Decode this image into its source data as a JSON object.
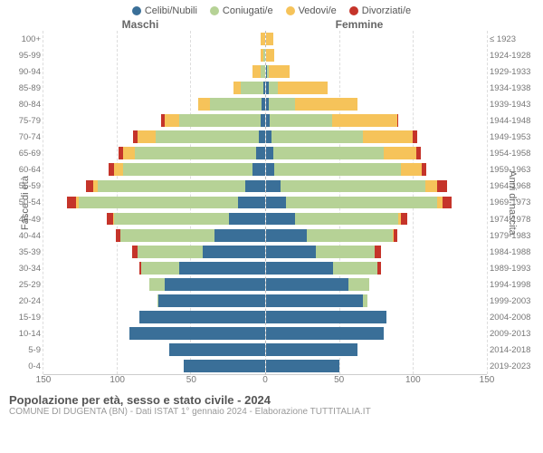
{
  "legend": [
    {
      "label": "Celibi/Nubili",
      "color": "#3a6f98"
    },
    {
      "label": "Coniugati/e",
      "color": "#b6d296"
    },
    {
      "label": "Vedovi/e",
      "color": "#f6c35a"
    },
    {
      "label": "Divorziati/e",
      "color": "#c5342a"
    }
  ],
  "header": {
    "male": "Maschi",
    "female": "Femmine"
  },
  "y_left_label": "Fasce di età",
  "y_right_label": "Anni di nascita",
  "axis_x_max": 150,
  "x_ticks_left": [
    150,
    100,
    50,
    0
  ],
  "x_ticks_right": [
    0,
    50,
    100,
    150
  ],
  "age_bins": [
    "100+",
    "95-99",
    "90-94",
    "85-89",
    "80-84",
    "75-79",
    "70-74",
    "65-69",
    "60-64",
    "55-59",
    "50-54",
    "45-49",
    "40-44",
    "35-39",
    "30-34",
    "25-29",
    "20-24",
    "15-19",
    "10-14",
    "5-9",
    "0-4"
  ],
  "birth_bins": [
    "≤ 1923",
    "1924-1928",
    "1929-1933",
    "1934-1938",
    "1939-1943",
    "1944-1948",
    "1949-1953",
    "1954-1958",
    "1959-1963",
    "1964-1968",
    "1969-1973",
    "1974-1978",
    "1979-1983",
    "1984-1988",
    "1989-1993",
    "1994-1998",
    "1999-2003",
    "2004-2008",
    "2009-2013",
    "2014-2018",
    "2019-2023"
  ],
  "male": [
    {
      "cel": 0,
      "con": 0,
      "ved": 3,
      "div": 0
    },
    {
      "cel": 0,
      "con": 1,
      "ved": 2,
      "div": 0
    },
    {
      "cel": 0,
      "con": 3,
      "ved": 5,
      "div": 0
    },
    {
      "cel": 1,
      "con": 15,
      "ved": 5,
      "div": 0
    },
    {
      "cel": 2,
      "con": 35,
      "ved": 8,
      "div": 0
    },
    {
      "cel": 3,
      "con": 55,
      "ved": 10,
      "div": 2
    },
    {
      "cel": 4,
      "con": 70,
      "ved": 12,
      "div": 3
    },
    {
      "cel": 6,
      "con": 82,
      "ved": 8,
      "div": 3
    },
    {
      "cel": 8,
      "con": 88,
      "ved": 6,
      "div": 4
    },
    {
      "cel": 13,
      "con": 100,
      "ved": 3,
      "div": 5
    },
    {
      "cel": 18,
      "con": 108,
      "ved": 2,
      "div": 6
    },
    {
      "cel": 24,
      "con": 78,
      "ved": 1,
      "div": 4
    },
    {
      "cel": 34,
      "con": 64,
      "ved": 0,
      "div": 3
    },
    {
      "cel": 42,
      "con": 44,
      "ved": 0,
      "div": 4
    },
    {
      "cel": 58,
      "con": 26,
      "ved": 0,
      "div": 1
    },
    {
      "cel": 68,
      "con": 10,
      "ved": 0,
      "div": 0
    },
    {
      "cel": 72,
      "con": 1,
      "ved": 0,
      "div": 0
    },
    {
      "cel": 85,
      "con": 0,
      "ved": 0,
      "div": 0
    },
    {
      "cel": 92,
      "con": 0,
      "ved": 0,
      "div": 0
    },
    {
      "cel": 65,
      "con": 0,
      "ved": 0,
      "div": 0
    },
    {
      "cel": 55,
      "con": 0,
      "ved": 0,
      "div": 0
    }
  ],
  "female": [
    {
      "cel": 0,
      "con": 0,
      "ved": 5,
      "div": 0
    },
    {
      "cel": 0,
      "con": 0,
      "ved": 6,
      "div": 0
    },
    {
      "cel": 1,
      "con": 1,
      "ved": 14,
      "div": 0
    },
    {
      "cel": 2,
      "con": 6,
      "ved": 34,
      "div": 0
    },
    {
      "cel": 2,
      "con": 18,
      "ved": 42,
      "div": 0
    },
    {
      "cel": 3,
      "con": 42,
      "ved": 44,
      "div": 1
    },
    {
      "cel": 4,
      "con": 62,
      "ved": 34,
      "div": 3
    },
    {
      "cel": 5,
      "con": 75,
      "ved": 22,
      "div": 3
    },
    {
      "cel": 6,
      "con": 86,
      "ved": 14,
      "div": 3
    },
    {
      "cel": 10,
      "con": 98,
      "ved": 8,
      "div": 7
    },
    {
      "cel": 14,
      "con": 102,
      "ved": 4,
      "div": 6
    },
    {
      "cel": 20,
      "con": 70,
      "ved": 2,
      "div": 4
    },
    {
      "cel": 28,
      "con": 58,
      "ved": 1,
      "div": 2
    },
    {
      "cel": 34,
      "con": 40,
      "ved": 0,
      "div": 4
    },
    {
      "cel": 46,
      "con": 30,
      "ved": 0,
      "div": 2
    },
    {
      "cel": 56,
      "con": 14,
      "ved": 0,
      "div": 0
    },
    {
      "cel": 66,
      "con": 3,
      "ved": 0,
      "div": 0
    },
    {
      "cel": 82,
      "con": 0,
      "ved": 0,
      "div": 0
    },
    {
      "cel": 80,
      "con": 0,
      "ved": 0,
      "div": 0
    },
    {
      "cel": 62,
      "con": 0,
      "ved": 0,
      "div": 0
    },
    {
      "cel": 50,
      "con": 0,
      "ved": 0,
      "div": 0
    }
  ],
  "colors": {
    "cel": "#3a6f98",
    "con": "#b6d296",
    "ved": "#f6c35a",
    "div": "#c5342a",
    "grid": "#dddddd",
    "bg": "#ffffff"
  },
  "bar_height_pct": 77,
  "footer": {
    "title": "Popolazione per età, sesso e stato civile - 2024",
    "subtitle": "COMUNE DI DUGENTA (BN) - Dati ISTAT 1° gennaio 2024 - Elaborazione TUTTITALIA.IT"
  }
}
